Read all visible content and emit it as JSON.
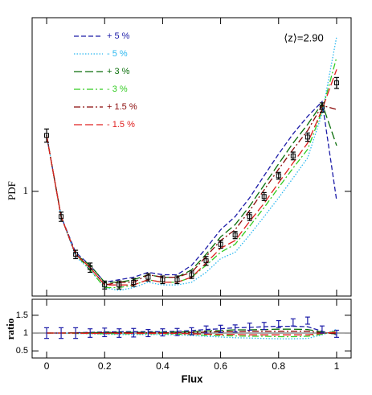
{
  "chart_data": [
    {
      "type": "line",
      "ylabel": "PDF",
      "annotation": "⟨z⟩=2.90",
      "log_y": true,
      "legend": "upper left",
      "xlim": [
        -0.05,
        1.05
      ],
      "ylim": [
        0.44,
        3.9
      ],
      "yticks": [
        1
      ],
      "x": [
        0,
        0.05,
        0.1,
        0.15,
        0.2,
        0.25,
        0.3,
        0.35,
        0.4,
        0.45,
        0.5,
        0.55,
        0.6,
        0.65,
        0.7,
        0.75,
        0.8,
        0.85,
        0.9,
        0.95,
        1
      ],
      "series": [
        {
          "name": "+ 5 %",
          "color": "#1c1ca8",
          "style": "dashed",
          "values": [
            1.55,
            0.82,
            0.62,
            0.56,
            0.49,
            0.5,
            0.51,
            0.53,
            0.52,
            0.52,
            0.56,
            0.64,
            0.74,
            0.82,
            0.95,
            1.13,
            1.34,
            1.57,
            1.8,
            2.02,
            0.93
          ]
        },
        {
          "name": "- 5 %",
          "color": "#2cb8f0",
          "style": "dotted",
          "values": [
            1.55,
            0.82,
            0.6,
            0.54,
            0.47,
            0.46,
            0.47,
            0.49,
            0.48,
            0.48,
            0.49,
            0.53,
            0.59,
            0.62,
            0.71,
            0.82,
            0.95,
            1.11,
            1.3,
            1.84,
            3.36
          ]
        },
        {
          "name": "+ 3 %",
          "color": "#0a6e0a",
          "style": "longdash",
          "values": [
            1.55,
            0.82,
            0.61,
            0.56,
            0.49,
            0.49,
            0.5,
            0.52,
            0.51,
            0.51,
            0.54,
            0.61,
            0.7,
            0.77,
            0.89,
            1.05,
            1.24,
            1.46,
            1.69,
            1.99,
            1.43
          ]
        },
        {
          "name": "- 3 %",
          "color": "#33cc22",
          "style": "dashdot",
          "values": [
            1.55,
            0.82,
            0.61,
            0.54,
            0.47,
            0.47,
            0.48,
            0.5,
            0.49,
            0.49,
            0.51,
            0.56,
            0.62,
            0.66,
            0.76,
            0.88,
            1.03,
            1.2,
            1.39,
            1.88,
            2.86
          ]
        },
        {
          "name": "+ 1.5 %",
          "color": "#8b0a0a",
          "style": "dashdot",
          "values": [
            1.55,
            0.82,
            0.61,
            0.55,
            0.48,
            0.49,
            0.49,
            0.52,
            0.51,
            0.51,
            0.53,
            0.6,
            0.68,
            0.74,
            0.86,
            1.01,
            1.19,
            1.39,
            1.61,
            1.96,
            1.9
          ]
        },
        {
          "name": "- 1.5 %",
          "color": "#e02020",
          "style": "longdash",
          "values": [
            1.55,
            0.82,
            0.61,
            0.55,
            0.48,
            0.48,
            0.48,
            0.5,
            0.49,
            0.49,
            0.51,
            0.57,
            0.64,
            0.68,
            0.79,
            0.91,
            1.07,
            1.25,
            1.46,
            1.9,
            2.6
          ]
        }
      ],
      "points": {
        "color": "#000000",
        "values": [
          1.55,
          0.82,
          0.61,
          0.55,
          0.48,
          0.48,
          0.49,
          0.51,
          0.5,
          0.5,
          0.52,
          0.58,
          0.66,
          0.71,
          0.82,
          0.96,
          1.13,
          1.32,
          1.53,
          1.93,
          2.34
        ],
        "errors": [
          0.08,
          0.03,
          0.02,
          0.02,
          0.015,
          0.015,
          0.015,
          0.015,
          0.015,
          0.015,
          0.015,
          0.02,
          0.02,
          0.02,
          0.025,
          0.03,
          0.03,
          0.04,
          0.05,
          0.07,
          0.1
        ]
      }
    },
    {
      "type": "line",
      "ylabel": "ratio",
      "xlabel": "Flux",
      "reference": 1,
      "xlim": [
        -0.05,
        1.05
      ],
      "ylim": [
        0.3,
        1.95
      ],
      "xticks": [
        0,
        0.2,
        0.4,
        0.6,
        0.8,
        1
      ],
      "yticks": [
        0.5,
        1,
        1.5
      ],
      "x": [
        0,
        0.05,
        0.1,
        0.15,
        0.2,
        0.25,
        0.3,
        0.35,
        0.4,
        0.45,
        0.5,
        0.55,
        0.6,
        0.65,
        0.7,
        0.75,
        0.8,
        0.85,
        0.9,
        0.95,
        1
      ],
      "series": [
        {
          "color": "#1c1ca8",
          "style": "dashed",
          "values": [
            1,
            1,
            1.01,
            1.02,
            1.03,
            1.04,
            1.04,
            1.04,
            1.04,
            1.05,
            1.07,
            1.1,
            1.12,
            1.15,
            1.16,
            1.18,
            1.19,
            1.19,
            1.18,
            1.05,
            0.95
          ]
        },
        {
          "color": "#2cb8f0",
          "style": "dotted",
          "values": [
            1,
            1,
            0.99,
            0.98,
            0.97,
            0.96,
            0.96,
            0.96,
            0.96,
            0.95,
            0.93,
            0.91,
            0.89,
            0.87,
            0.86,
            0.85,
            0.84,
            0.84,
            0.85,
            0.95,
            1.1
          ]
        },
        {
          "color": "#0a6e0a",
          "style": "longdash",
          "values": [
            1,
            1,
            1.01,
            1.01,
            1.02,
            1.02,
            1.02,
            1.02,
            1.02,
            1.03,
            1.04,
            1.06,
            1.07,
            1.09,
            1.09,
            1.1,
            1.11,
            1.11,
            1.1,
            1.03,
            0.97
          ]
        },
        {
          "color": "#33cc22",
          "style": "dashdot",
          "values": [
            1,
            1,
            0.99,
            0.99,
            0.98,
            0.98,
            0.98,
            0.98,
            0.98,
            0.97,
            0.96,
            0.94,
            0.93,
            0.92,
            0.91,
            0.91,
            0.9,
            0.9,
            0.91,
            0.97,
            1.06
          ]
        },
        {
          "color": "#8b0a0a",
          "style": "dashdot",
          "values": [
            1,
            1,
            1,
            1.01,
            1.01,
            1.01,
            1.01,
            1.01,
            1.01,
            1.01,
            1.02,
            1.03,
            1.04,
            1.04,
            1.05,
            1.05,
            1.05,
            1.05,
            1.05,
            1.01,
            0.99
          ]
        },
        {
          "color": "#e02020",
          "style": "longdash",
          "values": [
            1,
            1,
            1,
            0.99,
            0.99,
            0.99,
            0.99,
            0.99,
            0.99,
            0.99,
            0.98,
            0.97,
            0.96,
            0.96,
            0.95,
            0.95,
            0.95,
            0.95,
            0.95,
            0.99,
            1.03
          ]
        }
      ],
      "points": {
        "color": "#1c1ca8",
        "values": [
          1,
          1,
          1,
          1,
          1.02,
          1,
          1.01,
          1,
          1.02,
          1.03,
          1.05,
          1.1,
          1.12,
          1.13,
          1.18,
          1.2,
          1.25,
          1.3,
          1.35,
          1.1,
          0.98
        ],
        "errors": [
          0.15,
          0.15,
          0.15,
          0.12,
          0.12,
          0.12,
          0.12,
          0.1,
          0.1,
          0.1,
          0.1,
          0.1,
          0.1,
          0.1,
          0.1,
          0.1,
          0.1,
          0.1,
          0.1,
          0.1,
          0.1
        ]
      }
    }
  ]
}
